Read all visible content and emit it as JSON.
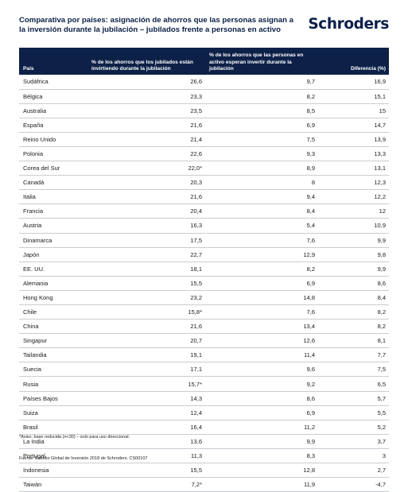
{
  "header": {
    "title": "Comparativa por países: asignación de ahorros que las personas asignan a la inversión durante la jubilación – jubilados frente a personas en activo",
    "logo": "Schroders"
  },
  "table": {
    "headers": {
      "country": "País",
      "retirees": "% de los ahorros que los jubilados están invirtiendo durante la jubilación",
      "workers": "% de los ahorros que las personas en activo esperan invertir durante la jubilación",
      "difference": "Diferencia (%)"
    },
    "rows": [
      {
        "country": "Sudáfrica",
        "retirees": "26,6",
        "workers": "9,7",
        "difference": "16,9"
      },
      {
        "country": "Bélgica",
        "retirees": "23,3",
        "workers": "8,2",
        "difference": "15,1"
      },
      {
        "country": "Australia",
        "retirees": "23,5",
        "workers": "8,5",
        "difference": "15"
      },
      {
        "country": "España",
        "retirees": "21,6",
        "workers": "6,9",
        "difference": "14,7"
      },
      {
        "country": "Reino Unido",
        "retirees": "21,4",
        "workers": "7,5",
        "difference": "13,9"
      },
      {
        "country": "Polonia",
        "retirees": "22,6",
        "workers": "9,3",
        "difference": "13,3"
      },
      {
        "country": "Corea del Sur",
        "retirees": "22,0*",
        "workers": "8,9",
        "difference": "13,1"
      },
      {
        "country": "Canadá",
        "retirees": "20,3",
        "workers": "8",
        "difference": "12,3"
      },
      {
        "country": "Italia",
        "retirees": "21,6",
        "workers": "9,4",
        "difference": "12,2"
      },
      {
        "country": "Francia",
        "retirees": "20,4",
        "workers": "8,4",
        "difference": "12"
      },
      {
        "country": "Austria",
        "retirees": "16,3",
        "workers": "5,4",
        "difference": "10,9"
      },
      {
        "country": "Dinamarca",
        "retirees": "17,5",
        "workers": "7,6",
        "difference": "9,9"
      },
      {
        "country": "Japón",
        "retirees": "22,7",
        "workers": "12,9",
        "difference": "9,8"
      },
      {
        "country": "EE. UU.",
        "retirees": "18,1",
        "workers": "8,2",
        "difference": "9,9"
      },
      {
        "country": "Alemania",
        "retirees": "15,5",
        "workers": "6,9",
        "difference": "8,6"
      },
      {
        "country": "Hong Kong",
        "retirees": "23,2",
        "workers": "14,8",
        "difference": "8,4"
      },
      {
        "country": "Chile",
        "retirees": "15,8*",
        "workers": "7,6",
        "difference": "8,2"
      },
      {
        "country": "China",
        "retirees": "21,6",
        "workers": "13,4",
        "difference": "8,2"
      },
      {
        "country": "Singapur",
        "retirees": "20,7",
        "workers": "12,6",
        "difference": "8,1"
      },
      {
        "country": "Tailandia",
        "retirees": "19,1",
        "workers": "11,4",
        "difference": "7,7"
      },
      {
        "country": "Suecia",
        "retirees": "17,1",
        "workers": "9,6",
        "difference": "7,5"
      },
      {
        "country": "Rusia",
        "retirees": "15,7*",
        "workers": "9,2",
        "difference": "6,5"
      },
      {
        "country": "Países Bajos",
        "retirees": "14,3",
        "workers": "8,6",
        "difference": "5,7"
      },
      {
        "country": "Suiza",
        "retirees": "12,4",
        "workers": "6,9",
        "difference": "5,5"
      },
      {
        "country": "Brasil",
        "retirees": "16,4",
        "workers": "11,2",
        "difference": "5,2"
      },
      {
        "country": "La India",
        "retirees": "13,6",
        "workers": "9,9",
        "difference": "3,7"
      },
      {
        "country": "Portugal",
        "retirees": "11,3",
        "workers": "8,3",
        "difference": "3"
      },
      {
        "country": "Indonesia",
        "retirees": "15,5",
        "workers": "12,8",
        "difference": "2,7"
      },
      {
        "country": "Taiwán",
        "retirees": "7,2*",
        "workers": "11,9",
        "difference": "-4,7"
      }
    ]
  },
  "footer": {
    "note": "*Aviso: base reducida (n<30) – solo para uso direccional.",
    "source": "Fuente: Estudio Global de Inversión 2018 de Schroders. CS00107"
  }
}
